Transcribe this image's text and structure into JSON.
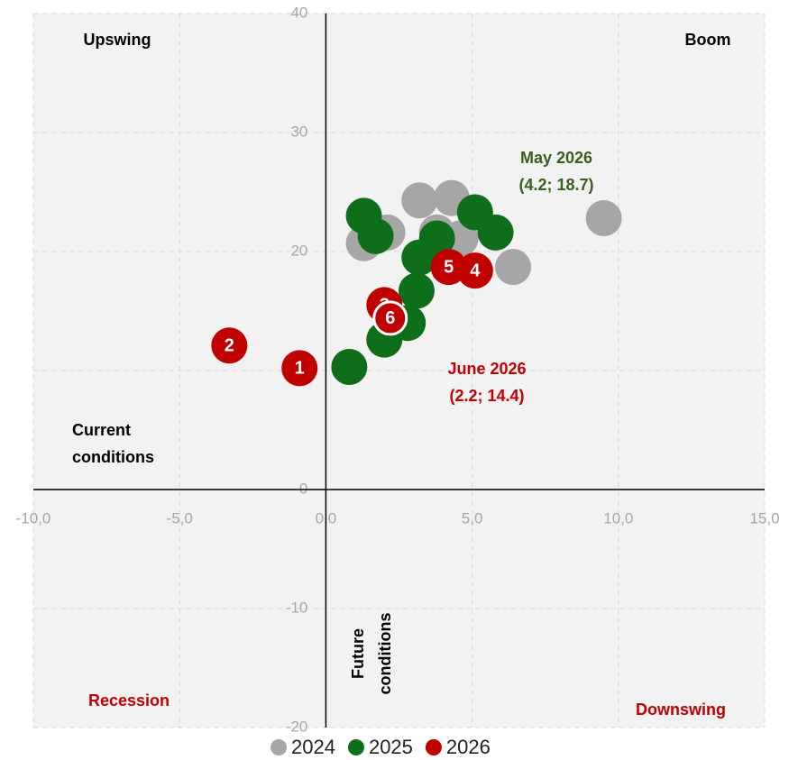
{
  "chart_data": {
    "type": "scatter",
    "xlim": [
      -10,
      15
    ],
    "ylim": [
      -20,
      40
    ],
    "xticks": [
      {
        "value": -10,
        "label": "-10,0"
      },
      {
        "value": -5,
        "label": "-5,0"
      },
      {
        "value": 0,
        "label": "0,0"
      },
      {
        "value": 5,
        "label": "5,0"
      },
      {
        "value": 10,
        "label": "10,0"
      },
      {
        "value": 15,
        "label": "15,0"
      }
    ],
    "yticks": [
      -20,
      -10,
      0,
      10,
      20,
      30,
      40
    ],
    "grid": true,
    "x_label": [
      "Current",
      "conditions"
    ],
    "y_label": [
      "Future",
      "conditions"
    ],
    "quadrants": {
      "top_left": "Upswing",
      "top_right": "Boom",
      "bottom_left": "Recession",
      "bottom_right": "Downswing"
    },
    "legend": "bottom",
    "series": [
      {
        "name": "2024",
        "color": "#a6a6a6",
        "x": [
          1.3,
          2.1,
          3.2,
          4.3,
          3.8,
          6.4,
          9.5,
          4.6
        ],
        "values": [
          20.7,
          21.6,
          24.3,
          24.5,
          21.6,
          18.7,
          22.8,
          21.1
        ]
      },
      {
        "name": "2025",
        "color": "#0e6e1a",
        "x": [
          1.3,
          1.7,
          5.1,
          5.8,
          3.8,
          3.2,
          3.1,
          2.8,
          2.0,
          0.8
        ],
        "values": [
          23.0,
          21.3,
          23.3,
          21.6,
          21.1,
          19.5,
          16.7,
          14.0,
          12.6,
          10.3
        ]
      },
      {
        "name": "2026",
        "color": "#c00000",
        "x": [
          -0.9,
          -3.3,
          2.0,
          5.1,
          4.2,
          2.2
        ],
        "values": [
          10.2,
          12.1,
          15.5,
          18.4,
          18.7,
          14.4
        ],
        "labels": [
          "1",
          "2",
          "3",
          "4",
          "5",
          "6"
        ],
        "highlight": 5
      }
    ],
    "annotations": [
      {
        "lines": [
          "May 2026",
          "(4.2; 18.7)"
        ],
        "color": "#3a5f1e"
      },
      {
        "lines": [
          "June 2026",
          "(2.2; 14.4)"
        ],
        "color": "#c00000"
      }
    ]
  }
}
